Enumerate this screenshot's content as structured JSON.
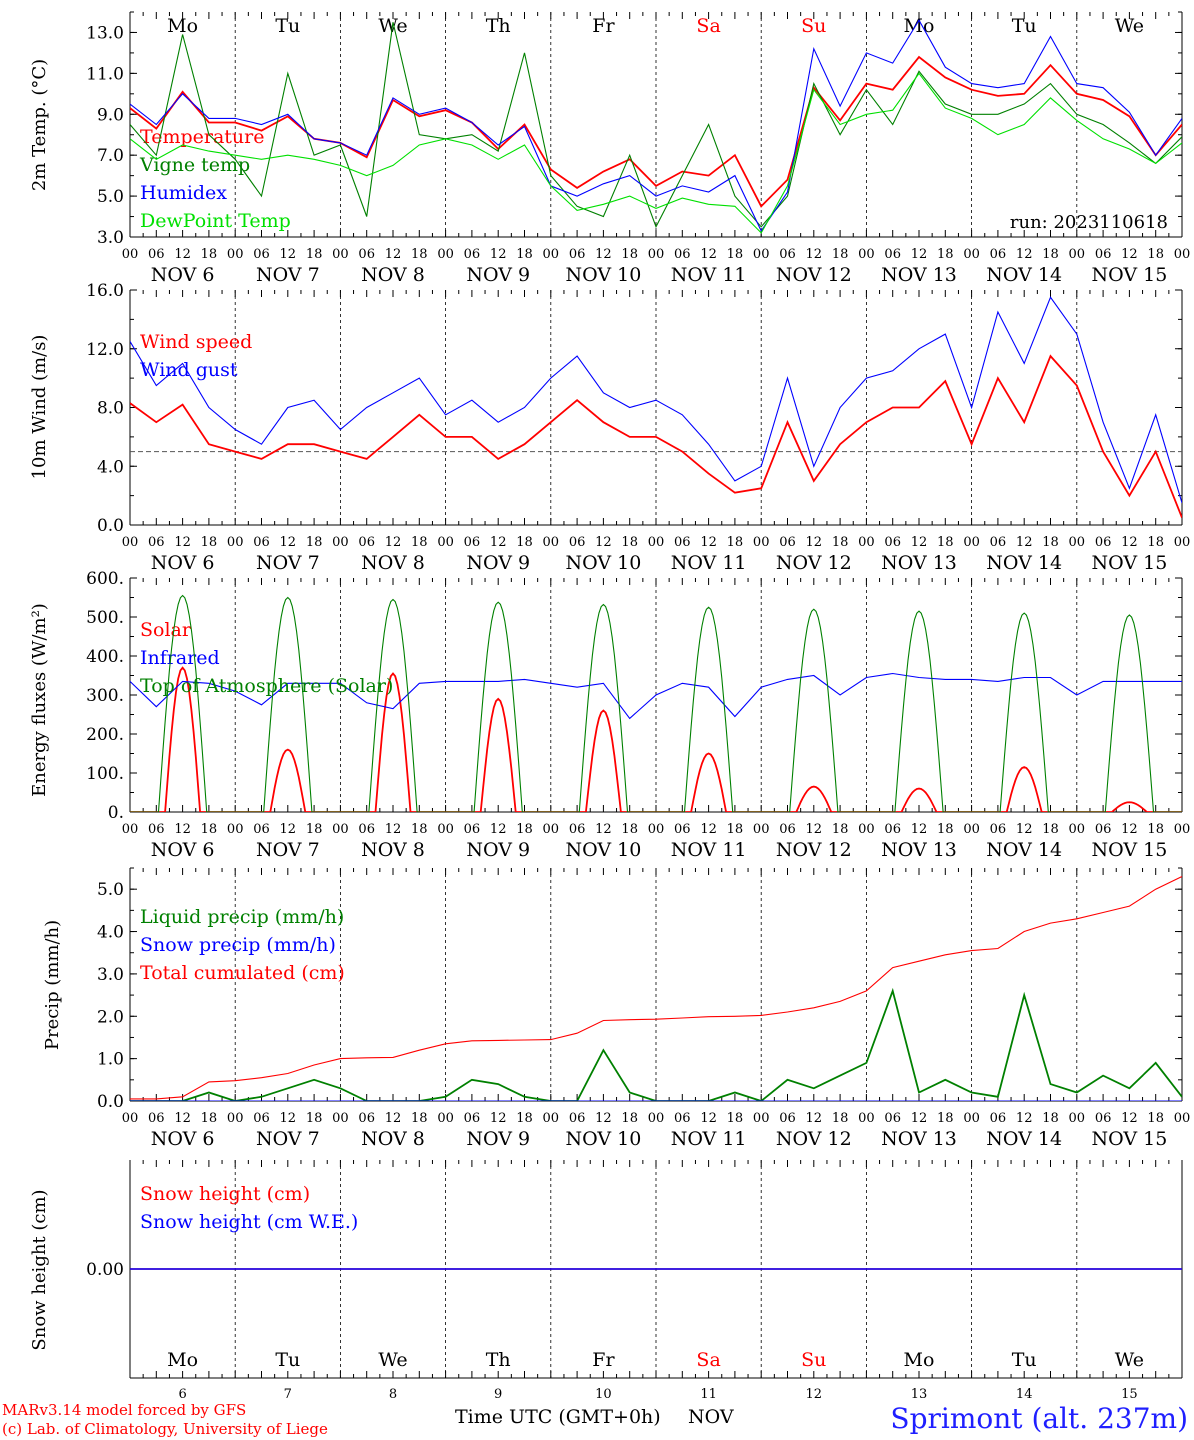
{
  "run_label": "run: 2023110618",
  "footer": {
    "model": "MARv3.14 model forced by GFS",
    "lab": "(c) Lab. of Climatology, University of Liege",
    "time_label": "Time UTC (GMT+0h)",
    "month": "NOV",
    "station": "Sprimont (alt. 237m)"
  },
  "weekdays": [
    "Mo",
    "Tu",
    "We",
    "Th",
    "Fr",
    "Sa",
    "Su",
    "Mo",
    "Tu",
    "We"
  ],
  "weekday_colors": [
    "#000000",
    "#000000",
    "#000000",
    "#000000",
    "#000000",
    "#ff0000",
    "#ff0000",
    "#000000",
    "#000000",
    "#000000"
  ],
  "date_labels": [
    "NOV 6",
    "NOV 7",
    "NOV 8",
    "NOV 9",
    "NOV 10",
    "NOV 11",
    "NOV 12",
    "NOV 13",
    "NOV 14",
    "NOV 15"
  ],
  "day_numbers": [
    "6",
    "7",
    "8",
    "9",
    "10",
    "11",
    "12",
    "13",
    "14",
    "15"
  ],
  "hour_ticks": [
    "00",
    "06",
    "12",
    "18"
  ],
  "chart_data": [
    {
      "type": "line",
      "ylabel": "2m Temp. (°C)",
      "ylim": [
        3,
        14
      ],
      "yticks": [
        "3.0",
        "5.0",
        "7.0",
        "9.0",
        "11.0",
        "13.0"
      ],
      "x_hours": [
        0,
        6,
        12,
        18,
        24,
        30,
        36,
        42,
        48,
        54,
        60,
        66,
        72,
        78,
        84,
        90,
        96,
        102,
        108,
        114,
        120,
        126,
        132,
        138,
        144,
        150,
        156,
        162,
        168,
        174,
        180,
        186,
        192,
        198,
        204,
        210,
        216,
        222,
        228,
        234,
        240
      ],
      "series": [
        {
          "name": "Temperature",
          "color": "#ff0000",
          "values": [
            9.3,
            8.3,
            10.1,
            8.6,
            8.6,
            8.2,
            8.9,
            7.8,
            7.6,
            6.9,
            9.7,
            8.9,
            9.2,
            8.6,
            7.3,
            8.5,
            6.3,
            5.4,
            6.2,
            6.8,
            5.5,
            6.2,
            6.0,
            7.0,
            4.5,
            5.8,
            10.3,
            8.7,
            10.5,
            10.2,
            11.8,
            10.8,
            10.2,
            9.9,
            10.0,
            11.4,
            10.0,
            9.7,
            8.9,
            7.0,
            8.5
          ]
        },
        {
          "name": "Vigne temp",
          "color": "#008000",
          "values": [
            8.5,
            7.0,
            12.9,
            8.0,
            6.8,
            5.0,
            11.0,
            7.0,
            7.5,
            4.0,
            13.5,
            8.0,
            7.8,
            8.0,
            7.2,
            12.0,
            6.0,
            4.5,
            4.0,
            7.0,
            3.5,
            6.0,
            8.5,
            5.0,
            3.5,
            5.0,
            10.5,
            8.0,
            10.2,
            8.5,
            11.1,
            9.5,
            9.0,
            9.0,
            9.5,
            10.5,
            9.0,
            8.5,
            7.6,
            6.6,
            7.9
          ]
        },
        {
          "name": "Humidex",
          "color": "#0000ff",
          "values": [
            9.5,
            8.5,
            10.0,
            8.8,
            8.8,
            8.5,
            9.0,
            7.8,
            7.6,
            7.0,
            9.8,
            9.0,
            9.3,
            8.6,
            7.5,
            8.4,
            5.5,
            5.0,
            5.6,
            6.0,
            5.0,
            5.5,
            5.2,
            6.0,
            3.3,
            5.2,
            12.2,
            9.4,
            12.0,
            11.5,
            13.6,
            11.3,
            10.5,
            10.3,
            10.5,
            12.8,
            10.5,
            10.3,
            9.1,
            7.0,
            8.8
          ]
        },
        {
          "name": "DewPoint Temp",
          "color": "#00e000",
          "values": [
            7.8,
            6.8,
            7.5,
            7.2,
            7.0,
            6.8,
            7.0,
            6.8,
            6.5,
            6.0,
            6.5,
            7.5,
            7.8,
            7.5,
            6.8,
            7.5,
            5.5,
            4.3,
            4.6,
            5.0,
            4.4,
            4.9,
            4.6,
            4.5,
            3.2,
            5.5,
            10.2,
            8.5,
            9.0,
            9.2,
            11.0,
            9.3,
            8.8,
            8.0,
            8.5,
            9.8,
            8.7,
            7.8,
            7.3,
            6.6,
            7.6
          ]
        }
      ]
    },
    {
      "type": "line",
      "ylabel": "10m Wind (m/s)",
      "ylim": [
        0,
        16
      ],
      "yticks": [
        "0.0",
        "4.0",
        "8.0",
        "12.0",
        "16.0"
      ],
      "reference_line": 5,
      "x_hours": [
        0,
        6,
        12,
        18,
        24,
        30,
        36,
        42,
        48,
        54,
        60,
        66,
        72,
        78,
        84,
        90,
        96,
        102,
        108,
        114,
        120,
        126,
        132,
        138,
        144,
        150,
        156,
        162,
        168,
        174,
        180,
        186,
        192,
        198,
        204,
        210,
        216,
        222,
        228,
        234,
        240
      ],
      "series": [
        {
          "name": "Wind speed",
          "color": "#ff0000",
          "values": [
            8.3,
            7.0,
            8.2,
            5.5,
            5.0,
            4.5,
            5.5,
            5.5,
            5.0,
            4.5,
            6.0,
            7.5,
            6.0,
            6.0,
            4.5,
            5.5,
            7.0,
            8.5,
            7.0,
            6.0,
            6.0,
            5.0,
            3.5,
            2.2,
            2.5,
            7.0,
            3.0,
            5.5,
            7.0,
            8.0,
            8.0,
            9.8,
            5.5,
            10.0,
            7.0,
            11.5,
            9.5,
            5.0,
            2.0,
            5.0,
            0.5
          ]
        },
        {
          "name": "Wind gust",
          "color": "#0000ff",
          "values": [
            12.5,
            9.5,
            11.0,
            8.0,
            6.5,
            5.5,
            8.0,
            8.5,
            6.5,
            8.0,
            9.0,
            10.0,
            7.5,
            8.5,
            7.0,
            8.0,
            10.0,
            11.5,
            9.0,
            8.0,
            8.5,
            7.5,
            5.5,
            3.0,
            4.0,
            10.0,
            4.0,
            8.0,
            10.0,
            10.5,
            12.0,
            13.0,
            8.0,
            14.5,
            11.0,
            15.5,
            13.0,
            7.0,
            2.5,
            7.5,
            1.5
          ]
        }
      ]
    },
    {
      "type": "line",
      "ylabel": "Energy fluxes (W/m²)",
      "ylim": [
        0,
        600
      ],
      "yticks": [
        "0.",
        "100.",
        "200.",
        "300.",
        "400.",
        "500.",
        "600."
      ],
      "series": [
        {
          "name": "Solar",
          "color": "#ff0000",
          "day_peaks": [
            370,
            160,
            355,
            290,
            260,
            150,
            65,
            60,
            115,
            25
          ]
        },
        {
          "name": "Infrared",
          "color": "#0000ff",
          "x_hours": [
            0,
            6,
            12,
            18,
            24,
            30,
            36,
            42,
            48,
            54,
            60,
            66,
            72,
            78,
            84,
            90,
            96,
            102,
            108,
            114,
            120,
            126,
            132,
            138,
            144,
            150,
            156,
            162,
            168,
            174,
            180,
            186,
            192,
            198,
            204,
            210,
            216,
            222,
            228,
            234,
            240
          ],
          "values": [
            335,
            270,
            335,
            330,
            310,
            275,
            330,
            330,
            330,
            280,
            265,
            330,
            335,
            335,
            335,
            340,
            330,
            320,
            330,
            240,
            300,
            330,
            320,
            245,
            320,
            340,
            350,
            300,
            345,
            355,
            345,
            340,
            340,
            335,
            345,
            345,
            300,
            335,
            335,
            335,
            335
          ]
        },
        {
          "name": "Top of Atmosphere (Solar)",
          "color": "#008000",
          "day_peaks": [
            555,
            550,
            545,
            538,
            532,
            525,
            520,
            515,
            510,
            505
          ]
        }
      ]
    },
    {
      "type": "line",
      "ylabel": "Precip (mm/h)",
      "ylim": [
        0,
        5.5
      ],
      "yticks": [
        "0.0",
        "1.0",
        "2.0",
        "3.0",
        "4.0",
        "5.0"
      ],
      "x_hours": [
        0,
        6,
        12,
        18,
        24,
        30,
        36,
        42,
        48,
        54,
        60,
        66,
        72,
        78,
        84,
        90,
        96,
        102,
        108,
        114,
        120,
        126,
        132,
        138,
        144,
        150,
        156,
        162,
        168,
        174,
        180,
        186,
        192,
        198,
        204,
        210,
        216,
        222,
        228,
        234,
        240
      ],
      "series": [
        {
          "name": "Liquid precip (mm/h)",
          "color": "#008000",
          "values": [
            0,
            0,
            0,
            0.2,
            0,
            0.1,
            0.3,
            0.5,
            0.3,
            0,
            0,
            0,
            0.1,
            0.5,
            0.4,
            0.1,
            0,
            0,
            1.2,
            0.2,
            0,
            0,
            0,
            0.2,
            0,
            0.5,
            0.3,
            0.6,
            0.9,
            2.6,
            0.2,
            0.5,
            0.2,
            0.1,
            2.5,
            0.4,
            0.2,
            0.6,
            0.3,
            0.9,
            0.1
          ]
        },
        {
          "name": "Snow precip (mm/h)",
          "color": "#0000ff",
          "values": [
            0,
            0,
            0,
            0,
            0,
            0,
            0,
            0,
            0,
            0,
            0,
            0,
            0,
            0,
            0,
            0,
            0,
            0,
            0,
            0,
            0,
            0,
            0,
            0,
            0,
            0,
            0,
            0,
            0,
            0,
            0,
            0,
            0,
            0,
            0,
            0,
            0,
            0,
            0,
            0,
            0
          ]
        },
        {
          "name": "Total cumulated (cm)",
          "color": "#ff0000",
          "values": [
            0.05,
            0.05,
            0.1,
            0.45,
            0.48,
            0.55,
            0.65,
            0.85,
            1.0,
            1.02,
            1.03,
            1.2,
            1.35,
            1.42,
            1.43,
            1.44,
            1.45,
            1.6,
            1.9,
            1.92,
            1.93,
            1.96,
            1.99,
            2.0,
            2.02,
            2.1,
            2.2,
            2.35,
            2.6,
            3.15,
            3.3,
            3.45,
            3.55,
            3.6,
            4.0,
            4.2,
            4.3,
            4.45,
            4.6,
            5.0,
            5.3
          ]
        }
      ]
    },
    {
      "type": "line",
      "ylabel": "Snow height (cm)",
      "yticks": [
        "0.00"
      ],
      "series": [
        {
          "name": "Snow height (cm)",
          "color": "#ff0000",
          "constant": 0
        },
        {
          "name": "Snow height (cm W.E.)",
          "color": "#0000ff",
          "constant": 0
        }
      ]
    }
  ]
}
